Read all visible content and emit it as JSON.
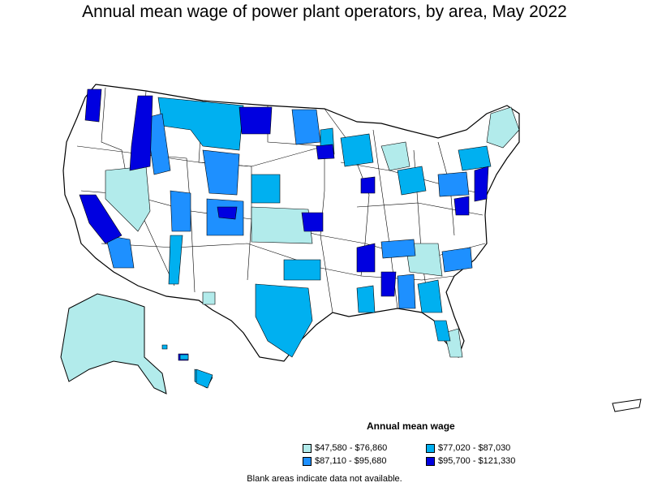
{
  "title": "Annual mean wage of power plant operators, by area, May 2022",
  "legend": {
    "title": "Annual mean wage",
    "items": [
      {
        "label": "$47,580 - $76,860",
        "color": "#b2ebeb"
      },
      {
        "label": "$77,020 - $87,030",
        "color": "#00b0f0"
      },
      {
        "label": "$87,110 - $95,680",
        "color": "#1e90ff"
      },
      {
        "label": "$95,700 - $121,330",
        "color": "#0000e0"
      }
    ]
  },
  "note": "Blank areas indicate data not available.",
  "colors": {
    "tier1": "#b2ebeb",
    "tier2": "#00b0f0",
    "tier3": "#1e90ff",
    "tier4": "#0000e0",
    "blank": "#ffffff",
    "border": "#000000"
  }
}
